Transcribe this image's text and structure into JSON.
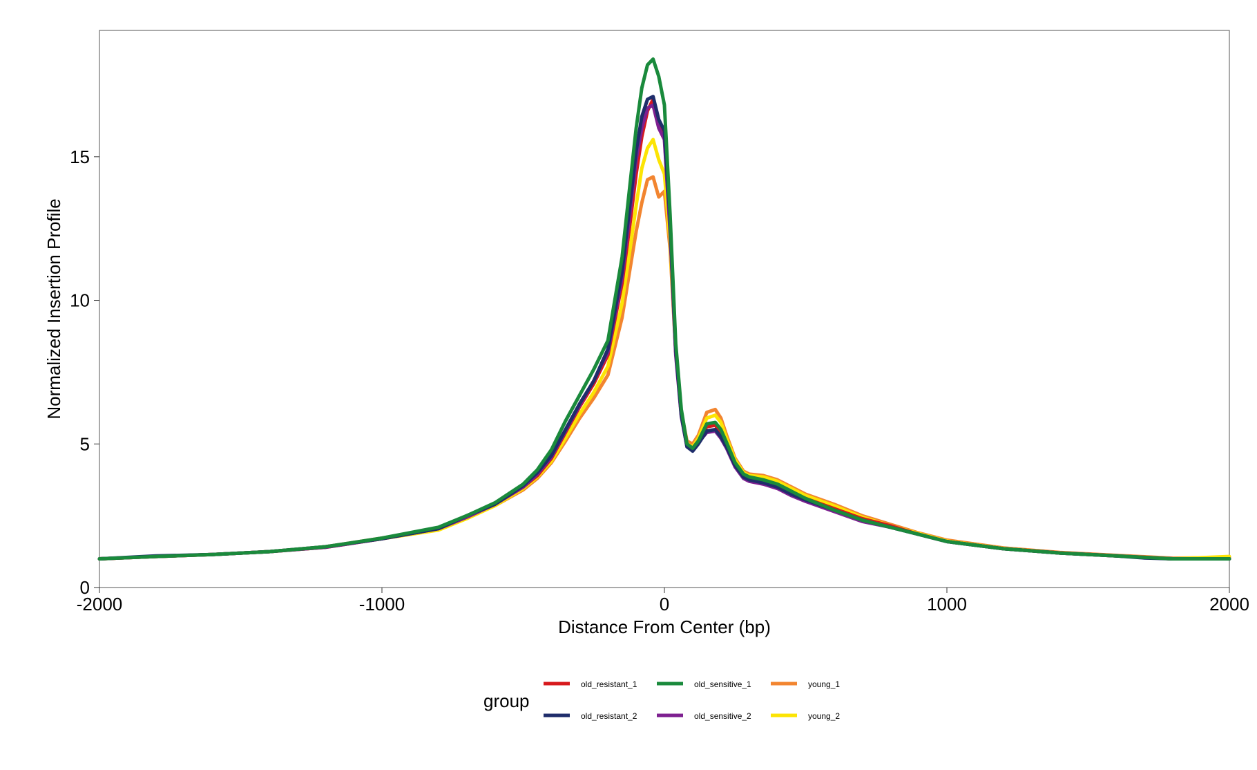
{
  "chart_data": {
    "type": "line",
    "title": "",
    "xlabel": "Distance From Center (bp)",
    "ylabel": "Normalized Insertion Profile",
    "xlim": [
      -2000,
      2000
    ],
    "ylim": [
      0,
      19.4
    ],
    "x_ticks": [
      -2000,
      -1000,
      0,
      1000,
      2000
    ],
    "x_tick_labels": [
      "-2000",
      "-1000",
      "0",
      "1000",
      "2000"
    ],
    "y_ticks": [
      0,
      5,
      10,
      15
    ],
    "y_tick_labels": [
      "0",
      "5",
      "10",
      "15"
    ],
    "grid": false,
    "legend": {
      "title": "group",
      "placement": "bottom",
      "entries": [
        "old_resistant_1",
        "old_sensitive_1",
        "young_1",
        "old_resistant_2",
        "old_sensitive_2",
        "young_2"
      ]
    },
    "x": [
      -2000,
      -1800,
      -1600,
      -1400,
      -1200,
      -1000,
      -800,
      -700,
      -600,
      -500,
      -450,
      -400,
      -350,
      -300,
      -250,
      -200,
      -150,
      -120,
      -100,
      -80,
      -60,
      -40,
      -20,
      0,
      20,
      40,
      60,
      80,
      100,
      120,
      150,
      180,
      200,
      220,
      250,
      280,
      300,
      350,
      400,
      450,
      500,
      600,
      700,
      800,
      900,
      1000,
      1200,
      1400,
      1600,
      1700,
      1800,
      2000
    ],
    "series": [
      {
        "name": "old_resistant_1",
        "color": "#D7191C",
        "values": [
          1.0,
          1.08,
          1.15,
          1.25,
          1.4,
          1.7,
          2.05,
          2.45,
          2.9,
          3.5,
          3.9,
          4.5,
          5.4,
          6.3,
          7.1,
          8.1,
          10.6,
          12.8,
          14.4,
          15.7,
          16.6,
          17.0,
          16.2,
          15.7,
          12.5,
          8.2,
          6.0,
          4.95,
          4.85,
          5.1,
          5.6,
          5.65,
          5.4,
          5.0,
          4.3,
          3.9,
          3.8,
          3.7,
          3.55,
          3.3,
          3.1,
          2.75,
          2.4,
          2.15,
          1.85,
          1.6,
          1.35,
          1.2,
          1.1,
          1.05,
          1.0,
          1.0
        ]
      },
      {
        "name": "old_sensitive_1",
        "color": "#1A8A3C",
        "values": [
          1.0,
          1.08,
          1.15,
          1.25,
          1.42,
          1.72,
          2.1,
          2.5,
          2.95,
          3.6,
          4.1,
          4.8,
          5.8,
          6.7,
          7.6,
          8.6,
          11.5,
          14.2,
          16.0,
          17.4,
          18.2,
          18.4,
          17.8,
          16.8,
          13.0,
          8.5,
          6.2,
          5.0,
          4.85,
          5.1,
          5.7,
          5.75,
          5.5,
          5.05,
          4.35,
          3.95,
          3.85,
          3.75,
          3.6,
          3.35,
          3.1,
          2.7,
          2.35,
          2.1,
          1.85,
          1.6,
          1.35,
          1.2,
          1.1,
          1.05,
          1.0,
          1.0
        ]
      },
      {
        "name": "young_1",
        "color": "#F28530",
        "values": [
          1.0,
          1.08,
          1.15,
          1.25,
          1.42,
          1.72,
          2.05,
          2.45,
          2.85,
          3.4,
          3.8,
          4.35,
          5.1,
          5.9,
          6.6,
          7.4,
          9.4,
          11.2,
          12.4,
          13.4,
          14.2,
          14.3,
          13.6,
          13.8,
          11.8,
          8.2,
          6.1,
          5.1,
          5.0,
          5.3,
          6.1,
          6.2,
          5.9,
          5.3,
          4.5,
          4.05,
          3.95,
          3.9,
          3.75,
          3.5,
          3.25,
          2.9,
          2.5,
          2.2,
          1.9,
          1.65,
          1.38,
          1.22,
          1.12,
          1.07,
          1.02,
          1.05
        ]
      },
      {
        "name": "old_resistant_2",
        "color": "#1F2D6B",
        "values": [
          1.0,
          1.1,
          1.15,
          1.25,
          1.42,
          1.7,
          2.05,
          2.5,
          2.9,
          3.55,
          4.0,
          4.6,
          5.5,
          6.4,
          7.2,
          8.3,
          11.0,
          13.5,
          15.2,
          16.4,
          17.0,
          17.1,
          16.3,
          15.9,
          12.8,
          8.3,
          6.0,
          4.9,
          4.75,
          5.0,
          5.45,
          5.5,
          5.25,
          4.9,
          4.25,
          3.85,
          3.75,
          3.65,
          3.5,
          3.25,
          3.05,
          2.7,
          2.35,
          2.1,
          1.85,
          1.6,
          1.35,
          1.2,
          1.1,
          1.03,
          1.0,
          1.0
        ]
      },
      {
        "name": "old_sensitive_2",
        "color": "#7E2090",
        "values": [
          1.0,
          1.08,
          1.15,
          1.25,
          1.4,
          1.7,
          2.05,
          2.45,
          2.9,
          3.5,
          3.95,
          4.55,
          5.45,
          6.35,
          7.2,
          8.2,
          10.8,
          13.2,
          14.9,
          16.0,
          16.7,
          16.8,
          16.0,
          15.6,
          12.4,
          8.1,
          5.95,
          4.9,
          4.8,
          5.05,
          5.4,
          5.45,
          5.2,
          4.85,
          4.2,
          3.8,
          3.7,
          3.6,
          3.45,
          3.2,
          3.0,
          2.65,
          2.3,
          2.1,
          1.85,
          1.6,
          1.35,
          1.2,
          1.1,
          1.05,
          1.0,
          1.0
        ]
      },
      {
        "name": "young_2",
        "color": "#FCE404",
        "values": [
          1.0,
          1.08,
          1.15,
          1.25,
          1.4,
          1.7,
          2.0,
          2.4,
          2.85,
          3.45,
          3.85,
          4.4,
          5.2,
          6.05,
          6.8,
          7.7,
          9.9,
          11.9,
          13.3,
          14.6,
          15.3,
          15.6,
          14.9,
          14.4,
          12.0,
          8.2,
          6.05,
          5.0,
          4.9,
          5.2,
          5.9,
          6.0,
          5.75,
          5.2,
          4.45,
          4.0,
          3.9,
          3.85,
          3.7,
          3.45,
          3.2,
          2.85,
          2.45,
          2.15,
          1.88,
          1.62,
          1.36,
          1.2,
          1.1,
          1.05,
          1.0,
          1.08
        ]
      }
    ]
  }
}
